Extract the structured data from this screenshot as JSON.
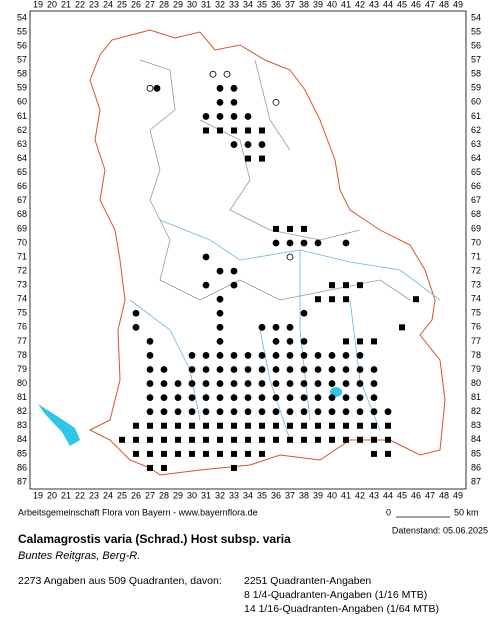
{
  "grid": {
    "columns": [
      19,
      20,
      21,
      22,
      23,
      24,
      25,
      26,
      27,
      28,
      29,
      30,
      31,
      32,
      33,
      34,
      35,
      36,
      37,
      38,
      39,
      40,
      41,
      42,
      43,
      44,
      45,
      46,
      47,
      48,
      49
    ],
    "rows": [
      54,
      55,
      56,
      57,
      58,
      59,
      60,
      61,
      62,
      63,
      64,
      65,
      66,
      67,
      68,
      69,
      70,
      71,
      72,
      73,
      74,
      75,
      76,
      77,
      78,
      79,
      80,
      81,
      82,
      83,
      84,
      85,
      86,
      87
    ]
  },
  "footer": {
    "credit": "Arbeitsgemeinschaft Flora von Bayern - www.bayernflora.de",
    "scale_start": "0",
    "scale_end": "50 km",
    "date": "Datenstand: 05.06.2025"
  },
  "species": {
    "name": "Calamagrostis varia (Schrad.) Host subsp. varia",
    "common_name": "Buntes Reitgras, Berg-R."
  },
  "stats": {
    "summary": "2273 Angaben aus 509 Quadranten, davon:",
    "quadrant": "2251 Quadranten-Angaben",
    "quarter": "8 1/4-Quadranten-Angaben (1/16 MTB)",
    "sixteenth": "14 1/16-Quadranten-Angaben (1/64 MTB)"
  }
}
